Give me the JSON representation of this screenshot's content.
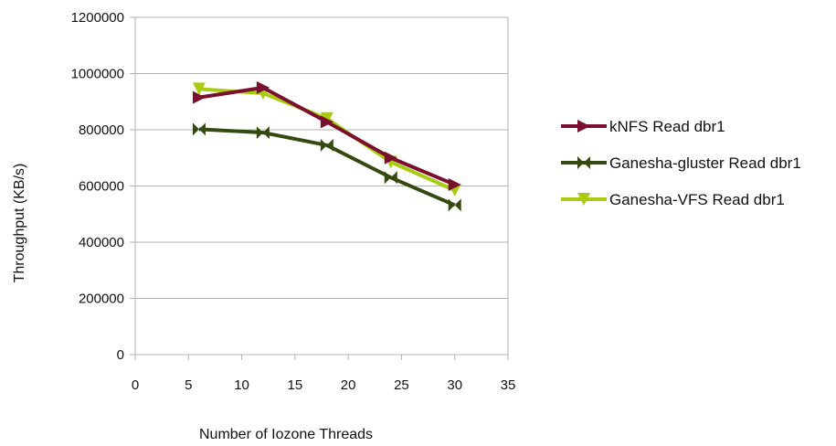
{
  "chart_data": {
    "type": "line",
    "xlabel": "Number of Iozone Threads",
    "ylabel": "Throughput (KB/s)",
    "xlim": [
      0,
      35
    ],
    "ylim": [
      0,
      1200000
    ],
    "x_ticks": [
      "0",
      "5",
      "10",
      "15",
      "20",
      "25",
      "30",
      "35"
    ],
    "y_ticks": [
      "0",
      "200000",
      "400000",
      "600000",
      "800000",
      "1000000",
      "1200000"
    ],
    "grid": "horizontal",
    "legend_position": "right",
    "x": [
      6,
      12,
      18,
      24,
      30
    ],
    "series": [
      {
        "name": "kNFS Read dbr1",
        "color": "#7a0f2e",
        "marker": "triangle-right-icon",
        "values": [
          915000,
          950000,
          828000,
          700000,
          605000
        ]
      },
      {
        "name": "Ganesha-gluster Read dbr1",
        "color": "#344a10",
        "marker": "bowtie-icon",
        "values": [
          802000,
          790000,
          745000,
          630000,
          532000
        ]
      },
      {
        "name": "Ganesha-VFS Read dbr1",
        "color": "#a8cc14",
        "marker": "triangle-down-icon",
        "values": [
          945000,
          930000,
          840000,
          685000,
          585000
        ]
      }
    ]
  }
}
